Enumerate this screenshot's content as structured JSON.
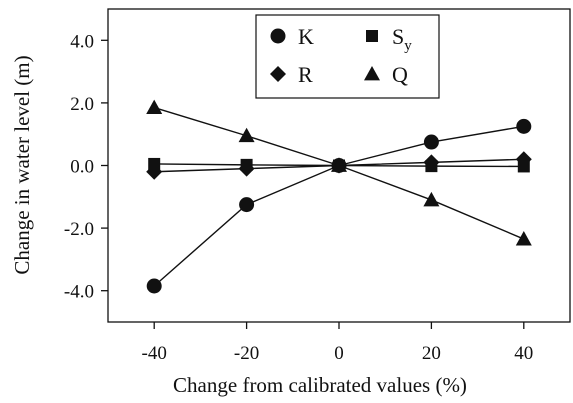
{
  "chart_data": {
    "type": "line",
    "xlabel": "Change from calibrated values (%)",
    "ylabel": "Change in water level (m)",
    "x": [
      -40,
      -20,
      0,
      20,
      40
    ],
    "xlim": [
      -50,
      50
    ],
    "ylim": [
      -5,
      5
    ],
    "xticks": [
      -40,
      -20,
      0,
      20,
      40
    ],
    "xtick_labels": [
      "-40",
      "-20",
      "0",
      "20",
      "40"
    ],
    "yticks": [
      4,
      2,
      0,
      -2,
      -4
    ],
    "ytick_labels": [
      "4.0",
      "2.0",
      "0.0",
      "-2.0",
      "-4.0"
    ],
    "grid": false,
    "legend_position": "top-center",
    "series": [
      {
        "name": "K",
        "marker": "circle",
        "values": [
          -3.85,
          -1.25,
          0.0,
          0.75,
          1.25
        ]
      },
      {
        "name": "Sy",
        "name_main": "S",
        "name_sub": "y",
        "marker": "square",
        "values": [
          0.05,
          0.02,
          0.0,
          -0.02,
          -0.03
        ]
      },
      {
        "name": "R",
        "marker": "diamond",
        "values": [
          -0.2,
          -0.1,
          0.0,
          0.1,
          0.2
        ]
      },
      {
        "name": "Q",
        "marker": "triangle",
        "values": [
          1.85,
          0.95,
          0.0,
          -1.1,
          -2.35
        ]
      }
    ],
    "colors": {
      "line": "#111111",
      "marker": "#111111"
    }
  }
}
